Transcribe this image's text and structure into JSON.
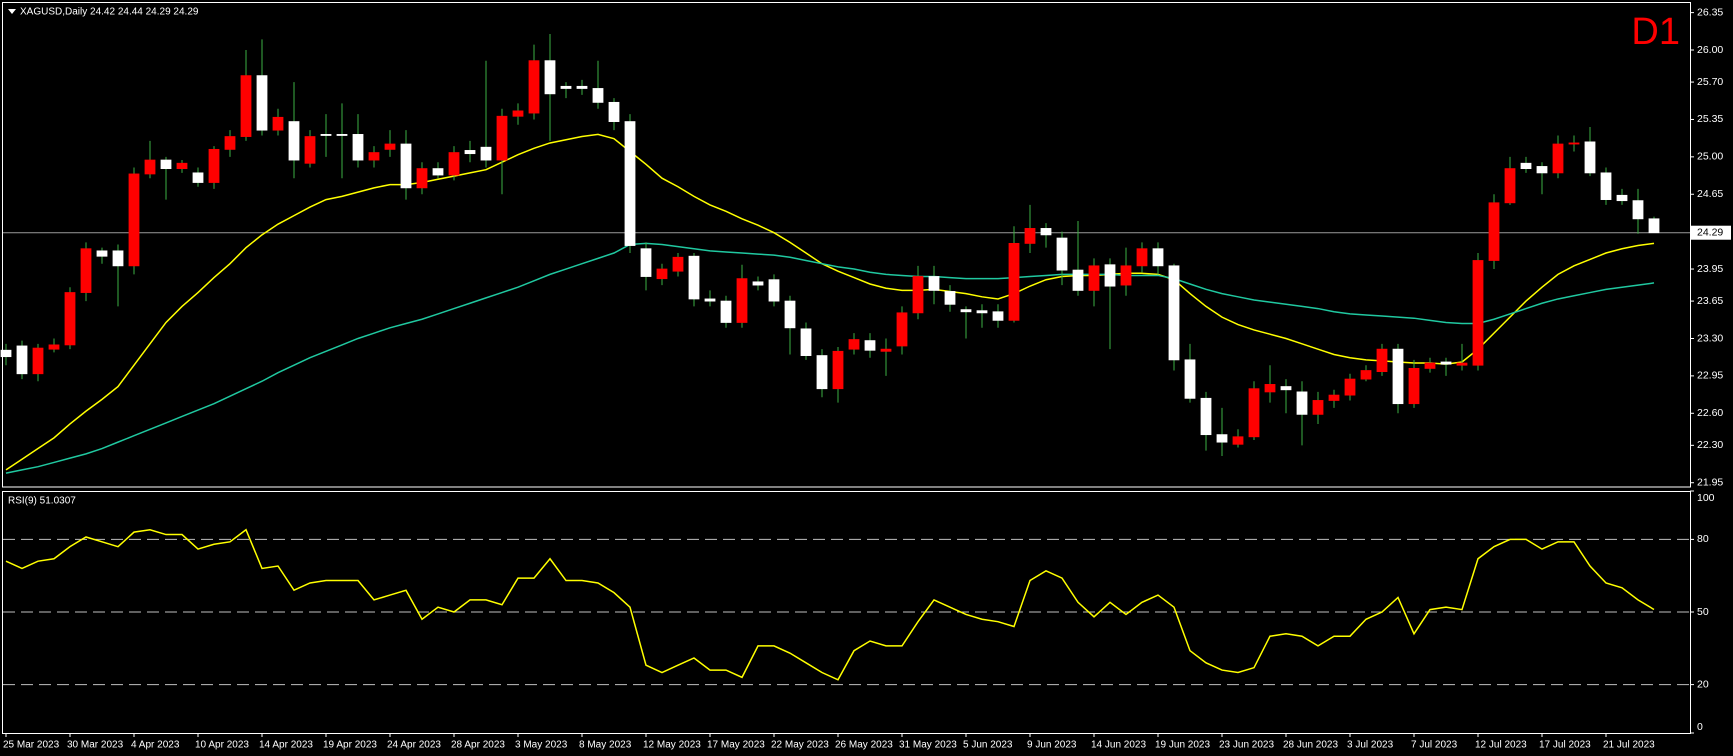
{
  "chart_data": [
    {
      "type": "candlestick",
      "title": "XAGUSD,Daily  24.42 24.44 24.29 24.29",
      "badge": "D1",
      "categories": [
        "25 Mar 2023",
        null,
        null,
        null,
        "30 Mar 2023",
        null,
        null,
        null,
        "4 Apr 2023",
        null,
        null,
        null,
        "10 Apr 2023",
        null,
        null,
        null,
        "14 Apr 2023",
        null,
        null,
        null,
        "19 Apr 2023",
        null,
        null,
        null,
        "24 Apr 2023",
        null,
        null,
        null,
        "28 Apr 2023",
        null,
        null,
        null,
        "3 May 2023",
        null,
        null,
        null,
        "8 May 2023",
        null,
        null,
        null,
        "12 May 2023",
        null,
        null,
        null,
        "17 May 2023",
        null,
        null,
        null,
        "22 May 2023",
        null,
        null,
        null,
        "26 May 2023",
        null,
        null,
        null,
        "31 May 2023",
        null,
        null,
        null,
        "5 Jun 2023",
        null,
        null,
        null,
        "9 Jun 2023",
        null,
        null,
        null,
        "14 Jun 2023",
        null,
        null,
        null,
        "19 Jun 2023",
        null,
        null,
        null,
        "23 Jun 2023",
        null,
        null,
        null,
        "28 Jun 2023",
        null,
        null,
        null,
        "3 Jul 2023",
        null,
        null,
        null,
        "7 Jul 2023",
        null,
        null,
        null,
        "12 Jul 2023",
        null,
        null,
        null,
        "17 Jul 2023",
        null,
        null,
        null,
        "21 Jul 2023",
        null,
        null,
        null
      ],
      "open": [
        23.19,
        23.23,
        22.97,
        23.2,
        23.24,
        23.73,
        24.12,
        24.12,
        23.98,
        24.84,
        24.97,
        24.89,
        24.85,
        24.76,
        25.07,
        25.19,
        25.76,
        25.25,
        25.33,
        24.94,
        25.21,
        25.21,
        25.21,
        24.97,
        25.07,
        25.12,
        24.71,
        24.89,
        24.83,
        25.06,
        25.09,
        24.97,
        25.38,
        25.41,
        25.9,
        25.66,
        25.66,
        25.64,
        25.51,
        25.33,
        24.14,
        23.86,
        23.93,
        24.07,
        23.67,
        23.65,
        23.45,
        23.83,
        23.85,
        23.65,
        23.39,
        23.14,
        22.83,
        23.2,
        23.28,
        23.18,
        23.23,
        23.54,
        23.88,
        23.74,
        23.57,
        23.56,
        23.55,
        23.47,
        24.19,
        24.33,
        24.24,
        23.94,
        23.75,
        23.99,
        23.8,
        23.98,
        24.14,
        23.98,
        23.1,
        22.74,
        22.4,
        22.31,
        22.38,
        22.8,
        22.85,
        22.8,
        22.59,
        22.72,
        22.77,
        22.92,
        22.99,
        23.2,
        22.69,
        23.02,
        23.08,
        23.05,
        23.05,
        24.03,
        24.57,
        24.94,
        24.91,
        24.85,
        25.12,
        25.14,
        24.85,
        24.64,
        24.59,
        24.42
      ],
      "high": [
        23.25,
        23.28,
        23.25,
        23.3,
        23.78,
        24.2,
        24.15,
        24.18,
        24.9,
        25.15,
        25.0,
        24.97,
        24.9,
        25.1,
        25.25,
        26.0,
        26.1,
        25.45,
        25.7,
        25.25,
        25.4,
        25.5,
        25.4,
        25.1,
        25.25,
        25.25,
        24.95,
        24.95,
        25.1,
        25.15,
        25.9,
        25.45,
        25.5,
        26.05,
        26.15,
        25.7,
        25.72,
        25.9,
        25.55,
        25.4,
        24.2,
        24.0,
        24.1,
        24.1,
        23.75,
        23.7,
        23.99,
        23.88,
        23.9,
        23.7,
        23.45,
        23.2,
        23.22,
        23.35,
        23.35,
        23.3,
        23.6,
        23.98,
        23.98,
        23.8,
        23.6,
        23.62,
        23.62,
        24.35,
        24.55,
        24.38,
        24.3,
        24.4,
        24.05,
        24.05,
        24.15,
        24.2,
        24.2,
        24.0,
        23.25,
        22.8,
        22.65,
        22.45,
        22.9,
        23.05,
        22.92,
        22.9,
        22.8,
        22.82,
        22.97,
        23.05,
        23.25,
        23.25,
        23.1,
        23.12,
        23.12,
        23.25,
        24.1,
        24.65,
        25.0,
        25.0,
        24.95,
        25.2,
        25.2,
        25.28,
        24.9,
        24.7,
        24.7,
        24.44
      ],
      "low": [
        23.05,
        22.92,
        22.9,
        23.17,
        23.2,
        23.65,
        24.0,
        23.6,
        23.9,
        24.8,
        24.6,
        24.85,
        24.72,
        24.7,
        25.0,
        25.15,
        25.2,
        25.2,
        24.8,
        24.9,
        25.0,
        24.8,
        24.9,
        24.9,
        25.0,
        24.6,
        24.65,
        24.8,
        24.78,
        24.95,
        24.9,
        24.65,
        25.3,
        25.35,
        25.15,
        25.55,
        25.58,
        25.45,
        25.25,
        24.1,
        23.75,
        23.8,
        23.88,
        23.6,
        23.6,
        23.4,
        23.4,
        23.75,
        23.6,
        23.15,
        23.1,
        22.75,
        22.7,
        23.15,
        23.12,
        22.95,
        23.15,
        23.48,
        23.62,
        23.55,
        23.3,
        23.4,
        23.4,
        23.45,
        24.1,
        24.15,
        23.8,
        23.7,
        23.6,
        23.2,
        23.7,
        23.92,
        23.9,
        23.0,
        22.7,
        22.25,
        22.2,
        22.28,
        22.35,
        22.7,
        22.6,
        22.3,
        22.5,
        22.65,
        22.72,
        22.9,
        22.95,
        22.6,
        22.65,
        22.98,
        22.95,
        23.0,
        23.0,
        23.95,
        24.55,
        24.85,
        24.65,
        24.8,
        25.05,
        24.82,
        24.55,
        24.55,
        24.28,
        24.29
      ],
      "close": [
        23.13,
        22.97,
        23.21,
        23.24,
        23.73,
        24.14,
        24.07,
        23.98,
        24.84,
        24.97,
        24.89,
        24.94,
        24.76,
        25.07,
        25.19,
        25.76,
        25.25,
        25.37,
        24.97,
        25.19,
        25.2,
        25.2,
        24.97,
        25.04,
        25.12,
        24.71,
        24.89,
        24.83,
        25.04,
        25.03,
        24.97,
        25.38,
        25.43,
        25.9,
        25.59,
        25.64,
        25.64,
        25.51,
        25.33,
        24.17,
        23.88,
        23.95,
        24.06,
        23.67,
        23.65,
        23.45,
        23.86,
        23.8,
        23.65,
        23.4,
        23.14,
        22.83,
        23.18,
        23.29,
        23.19,
        23.2,
        23.54,
        23.88,
        23.75,
        23.62,
        23.55,
        23.54,
        23.47,
        24.19,
        24.33,
        24.27,
        23.94,
        23.75,
        23.98,
        23.79,
        23.98,
        24.14,
        23.98,
        23.1,
        22.74,
        22.4,
        22.33,
        22.38,
        22.83,
        22.87,
        22.82,
        22.59,
        22.72,
        22.77,
        22.92,
        23.0,
        23.2,
        22.69,
        23.02,
        23.07,
        23.06,
        23.07,
        24.03,
        24.57,
        24.89,
        24.89,
        24.85,
        25.12,
        25.13,
        24.85,
        24.6,
        24.59,
        24.42,
        24.29
      ],
      "up_color": "#ff0000",
      "down_color": "#ffffff",
      "wick_color": "#3cb043",
      "series": [
        {
          "color": "#ffff00",
          "values": [
            22.07,
            22.17,
            22.27,
            22.37,
            22.5,
            22.62,
            22.73,
            22.85,
            23.05,
            23.25,
            23.45,
            23.6,
            23.73,
            23.87,
            24.0,
            24.15,
            24.27,
            24.37,
            24.45,
            24.53,
            24.6,
            24.63,
            24.67,
            24.71,
            24.74,
            24.74,
            24.76,
            24.79,
            24.82,
            24.85,
            24.88,
            24.95,
            25.02,
            25.08,
            25.13,
            25.16,
            25.19,
            25.21,
            25.17,
            25.05,
            24.93,
            24.8,
            24.72,
            24.63,
            24.55,
            24.49,
            24.42,
            24.36,
            24.29,
            24.2,
            24.1,
            24.0,
            23.93,
            23.87,
            23.81,
            23.77,
            23.75,
            23.75,
            23.76,
            23.74,
            23.72,
            23.69,
            23.67,
            23.72,
            23.79,
            23.85,
            23.88,
            23.89,
            23.89,
            23.9,
            23.91,
            23.91,
            23.9,
            23.85,
            23.72,
            23.6,
            23.5,
            23.43,
            23.38,
            23.34,
            23.3,
            23.25,
            23.2,
            23.15,
            23.12,
            23.1,
            23.09,
            23.08,
            23.07,
            23.07,
            23.06,
            23.08,
            23.2,
            23.35,
            23.5,
            23.65,
            23.78,
            23.9,
            23.98,
            24.04,
            24.1,
            24.14,
            24.17,
            24.19
          ]
        },
        {
          "color": "#20c8a0",
          "values": [
            22.04,
            22.07,
            22.1,
            22.14,
            22.18,
            22.22,
            22.27,
            22.33,
            22.39,
            22.45,
            22.51,
            22.57,
            22.63,
            22.69,
            22.76,
            22.83,
            22.9,
            22.98,
            23.05,
            23.12,
            23.18,
            23.24,
            23.3,
            23.35,
            23.4,
            23.44,
            23.48,
            23.53,
            23.58,
            23.63,
            23.68,
            23.73,
            23.78,
            23.84,
            23.9,
            23.95,
            24.0,
            24.05,
            24.1,
            24.18,
            24.19,
            24.18,
            24.16,
            24.14,
            24.12,
            24.11,
            24.1,
            24.09,
            24.08,
            24.06,
            24.03,
            24.0,
            23.97,
            23.95,
            23.92,
            23.9,
            23.89,
            23.88,
            23.88,
            23.87,
            23.86,
            23.86,
            23.86,
            23.87,
            23.88,
            23.89,
            23.9,
            23.9,
            23.9,
            23.9,
            23.89,
            23.89,
            23.89,
            23.86,
            23.81,
            23.76,
            23.72,
            23.69,
            23.66,
            23.64,
            23.62,
            23.6,
            23.58,
            23.55,
            23.53,
            23.52,
            23.51,
            23.5,
            23.49,
            23.47,
            23.45,
            23.44,
            23.44,
            23.48,
            23.53,
            23.58,
            23.63,
            23.67,
            23.7,
            23.73,
            23.76,
            23.78,
            23.8,
            23.82
          ]
        }
      ],
      "current_price": 24.29,
      "ylim": [
        21.91,
        26.44
      ],
      "yticks": [
        26.35,
        {
          "value": 26.0,
          "label": "26.00"
        },
        {
          "value": 25.7,
          "label": "25.70"
        },
        25.35,
        {
          "value": 25.0,
          "label": "25.00"
        },
        24.65,
        23.95,
        23.65,
        {
          "value": 23.3,
          "label": "23.30"
        },
        22.95,
        {
          "value": 22.6,
          "label": "22.60"
        },
        {
          "value": 22.3,
          "label": "22.30"
        },
        21.95
      ]
    },
    {
      "type": "line",
      "title": "RSI(9) 51.0307",
      "color": "#ffff00",
      "values": [
        71,
        68,
        71,
        72,
        77,
        81,
        79,
        77,
        83,
        84,
        82,
        82,
        76,
        78,
        79,
        84,
        68,
        69,
        59,
        62,
        63,
        63,
        63,
        55,
        57,
        59,
        47,
        52,
        50,
        55,
        55,
        53,
        64,
        64,
        72,
        63,
        63,
        62,
        58,
        52,
        28,
        25,
        28,
        31,
        26,
        26,
        23,
        36,
        36,
        33,
        29,
        25,
        22,
        34,
        38,
        36,
        36,
        46,
        55,
        52,
        49,
        47,
        46,
        44,
        63,
        67,
        64,
        54,
        48,
        54,
        49,
        54,
        57,
        52,
        34,
        29,
        26,
        25,
        27,
        40,
        41,
        40,
        36,
        40,
        40,
        47,
        50,
        56,
        41,
        51,
        52,
        51,
        72,
        77,
        80,
        80,
        76,
        79,
        79,
        69,
        62,
        60,
        55,
        51.03
      ],
      "ylim": [
        0,
        100
      ],
      "yticks": [
        100,
        80,
        50,
        20,
        0
      ],
      "levels": [
        80,
        50,
        20
      ]
    }
  ]
}
